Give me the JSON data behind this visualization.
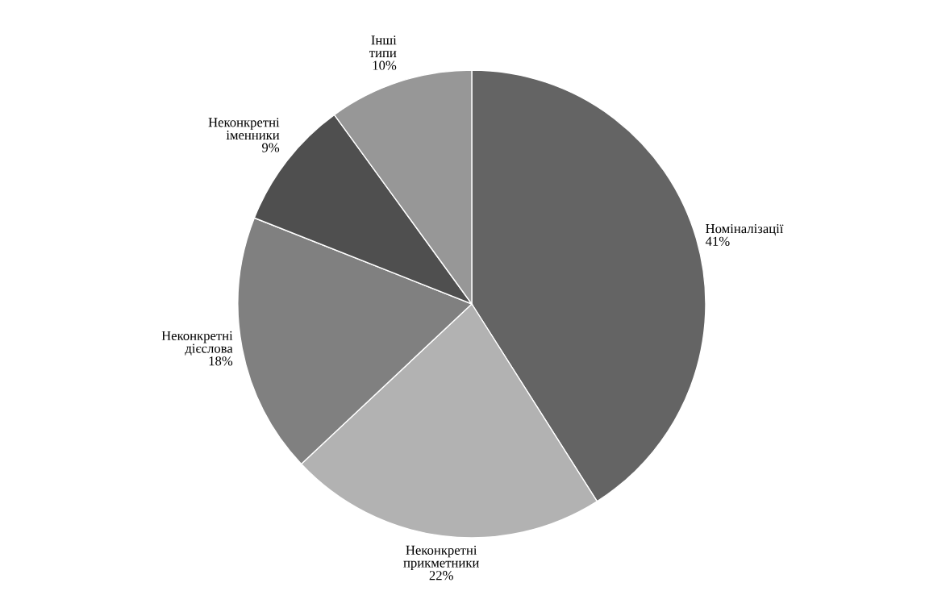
{
  "chart_data": {
    "type": "pie",
    "categories": [
      "Номіналізації",
      "Неконкретні прикметники",
      "Неконкретні дієслова",
      "Неконкретні іменники",
      "Інші типи"
    ],
    "values": [
      41,
      22,
      18,
      9,
      10
    ],
    "value_labels": [
      "41%",
      "22%",
      "18%",
      "9%",
      "10%"
    ],
    "colors": [
      "#646464",
      "#b2b2b2",
      "#808080",
      "#4f4f4f",
      "#979797"
    ],
    "legend": false
  }
}
